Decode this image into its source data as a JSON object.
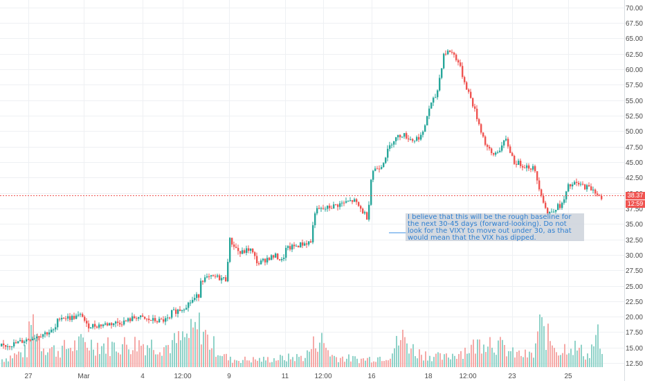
{
  "chart_data": {
    "type": "candlestick",
    "title": "",
    "xlabel": "",
    "ylabel": "",
    "ylim": [
      9.6,
      71.2
    ],
    "y_ticks": [
      "12.50",
      "15.00",
      "17.50",
      "20.00",
      "22.50",
      "25.00",
      "27.50",
      "30.00",
      "32.50",
      "35.00",
      "37.50",
      "40.00",
      "42.50",
      "45.00",
      "47.50",
      "50.00",
      "52.50",
      "55.00",
      "57.50",
      "60.00",
      "62.50",
      "65.00",
      "67.50",
      "70.00"
    ],
    "x_ticks": [
      "27",
      "Mar",
      "4",
      "12:00",
      "9",
      "11",
      "12:00",
      "16",
      "18",
      "12:00",
      "23",
      "25"
    ],
    "grid": true,
    "colors": {
      "up": "#26a69a",
      "down": "#ef5350",
      "grid": "#eef0f3",
      "price_line": "#ef5350"
    },
    "current_price": "38.37",
    "countdown": "12:59",
    "annotation": "I believe that this will be the rough baseline for the next 30-45 days (forward-looking). Do not look for the VIXY to move out under 30, as that would mean that the VIX has dipped.",
    "close_path": [
      [
        0,
        15.2
      ],
      [
        20,
        15.6
      ],
      [
        40,
        16.4
      ],
      [
        60,
        17.2
      ],
      [
        78,
        17.8
      ],
      [
        84,
        20.0
      ],
      [
        100,
        19.8
      ],
      [
        118,
        20.2
      ],
      [
        124,
        18.5
      ],
      [
        140,
        18.6
      ],
      [
        160,
        18.9
      ],
      [
        180,
        19.2
      ],
      [
        196,
        20.0
      ],
      [
        210,
        19.5
      ],
      [
        230,
        19.3
      ],
      [
        244,
        19.6
      ],
      [
        246,
        20.6
      ],
      [
        262,
        21.3
      ],
      [
        286,
        23.5
      ],
      [
        288,
        26.0
      ],
      [
        310,
        26.4
      ],
      [
        326,
        26.0
      ],
      [
        330,
        32.5
      ],
      [
        346,
        30.2
      ],
      [
        360,
        31.0
      ],
      [
        372,
        28.5
      ],
      [
        386,
        29.5
      ],
      [
        398,
        29.8
      ],
      [
        408,
        28.8
      ],
      [
        410,
        30.8
      ],
      [
        428,
        31.5
      ],
      [
        450,
        32.2
      ],
      [
        452,
        37.0
      ],
      [
        470,
        37.5
      ],
      [
        490,
        38.2
      ],
      [
        510,
        38.8
      ],
      [
        530,
        36.0
      ],
      [
        536,
        43.5
      ],
      [
        550,
        44.5
      ],
      [
        566,
        48.5
      ],
      [
        580,
        49.5
      ],
      [
        596,
        48.5
      ],
      [
        610,
        49.5
      ],
      [
        618,
        53.5
      ],
      [
        630,
        56.0
      ],
      [
        640,
        62.5
      ],
      [
        650,
        63.0
      ],
      [
        660,
        61.5
      ],
      [
        670,
        58.0
      ],
      [
        680,
        55.0
      ],
      [
        690,
        51.5
      ],
      [
        700,
        48.0
      ],
      [
        710,
        46.0
      ],
      [
        720,
        47.0
      ],
      [
        730,
        48.5
      ],
      [
        742,
        45.0
      ],
      [
        755,
        44.5
      ],
      [
        770,
        44.0
      ],
      [
        778,
        41.0
      ],
      [
        790,
        36.5
      ],
      [
        800,
        37.5
      ],
      [
        812,
        38.2
      ],
      [
        820,
        41.0
      ],
      [
        830,
        41.5
      ],
      [
        845,
        41.0
      ],
      [
        858,
        40.5
      ],
      [
        870,
        38.4
      ]
    ],
    "volume_path": [
      [
        0,
        0.1
      ],
      [
        40,
        0.22
      ],
      [
        42,
        0.62
      ],
      [
        48,
        0.6
      ],
      [
        60,
        0.3
      ],
      [
        80,
        0.22
      ],
      [
        120,
        0.32
      ],
      [
        160,
        0.28
      ],
      [
        200,
        0.32
      ],
      [
        240,
        0.28
      ],
      [
        270,
        0.4
      ],
      [
        290,
        0.55
      ],
      [
        300,
        0.35
      ],
      [
        330,
        0.1
      ],
      [
        380,
        0.1
      ],
      [
        440,
        0.14
      ],
      [
        460,
        0.4
      ],
      [
        480,
        0.14
      ],
      [
        520,
        0.1
      ],
      [
        560,
        0.15
      ],
      [
        580,
        0.4
      ],
      [
        600,
        0.2
      ],
      [
        640,
        0.12
      ],
      [
        690,
        0.3
      ],
      [
        700,
        0.4
      ],
      [
        740,
        0.18
      ],
      [
        770,
        0.15
      ],
      [
        778,
        0.55
      ],
      [
        790,
        0.4
      ],
      [
        810,
        0.2
      ],
      [
        820,
        0.32
      ],
      [
        850,
        0.15
      ],
      [
        862,
        0.45
      ],
      [
        870,
        0.1
      ]
    ]
  }
}
